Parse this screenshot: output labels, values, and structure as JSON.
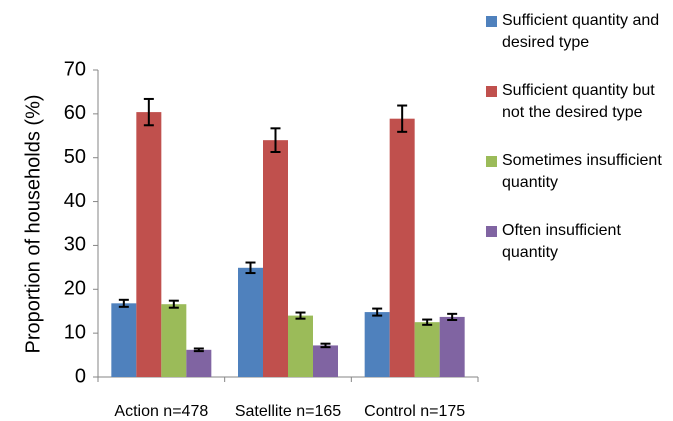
{
  "chart_data": {
    "type": "bar",
    "y_label": "Proportion of households (%)",
    "categories": [
      "Action n=478",
      "Satellite n=165",
      "Control n=175"
    ],
    "series": [
      {
        "name": "Sufficient quantity and desired type",
        "color": "#4f81bd",
        "values": [
          16.8,
          24.9,
          14.8
        ],
        "errors": [
          0.8,
          1.2,
          0.8
        ]
      },
      {
        "name": "Sufficient quantity but not the desired type",
        "color": "#c0504d",
        "values": [
          60.4,
          54.0,
          58.9
        ],
        "errors": [
          3.0,
          2.7,
          3.0
        ]
      },
      {
        "name": "Sometimes insufficient quantity",
        "color": "#9bbb59",
        "values": [
          16.6,
          14.0,
          12.5
        ],
        "errors": [
          0.8,
          0.7,
          0.6
        ]
      },
      {
        "name": "Often insufficient quantity",
        "color": "#8064a2",
        "values": [
          6.2,
          7.2,
          13.7
        ],
        "errors": [
          0.3,
          0.4,
          0.7
        ]
      }
    ],
    "ylim": [
      0,
      70
    ],
    "yticks": [
      0,
      10,
      20,
      30,
      40,
      50,
      60,
      70
    ],
    "grid": false,
    "legend": "right"
  }
}
